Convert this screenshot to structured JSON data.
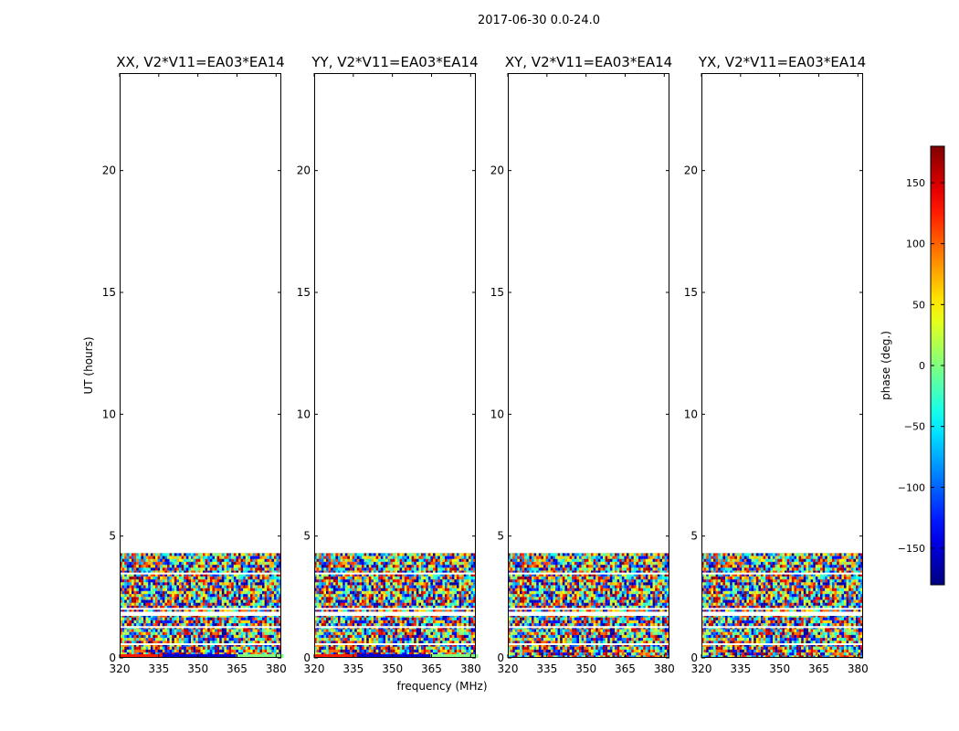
{
  "chart_data": {
    "type": "heatmap",
    "suptitle": "2017-06-30 0.0-24.0",
    "xlabel": "frequency (MHz)",
    "ylabel": "UT (hours)",
    "xlim": [
      320,
      382
    ],
    "ylim": [
      0,
      24
    ],
    "xticks": [
      320,
      335,
      350,
      365,
      380
    ],
    "yticks": [
      0,
      5,
      10,
      15,
      20
    ],
    "data_extent_hours": [
      0.0,
      4.3
    ],
    "panels": [
      {
        "title": "XX, V2*V11=EA03*EA14"
      },
      {
        "title": "YY, V2*V11=EA03*EA14"
      },
      {
        "title": "XY, V2*V11=EA03*EA14"
      },
      {
        "title": "YX, V2*V11=EA03*EA14"
      }
    ],
    "colorbar": {
      "label": "phase (deg.)",
      "range": [
        -180,
        180
      ],
      "ticks": [
        -150,
        -100,
        -50,
        0,
        50,
        100,
        150
      ],
      "tick_labels": [
        "−150",
        "−100",
        "−50",
        "0",
        "50",
        "100",
        "150"
      ],
      "colormap": "jet"
    }
  }
}
